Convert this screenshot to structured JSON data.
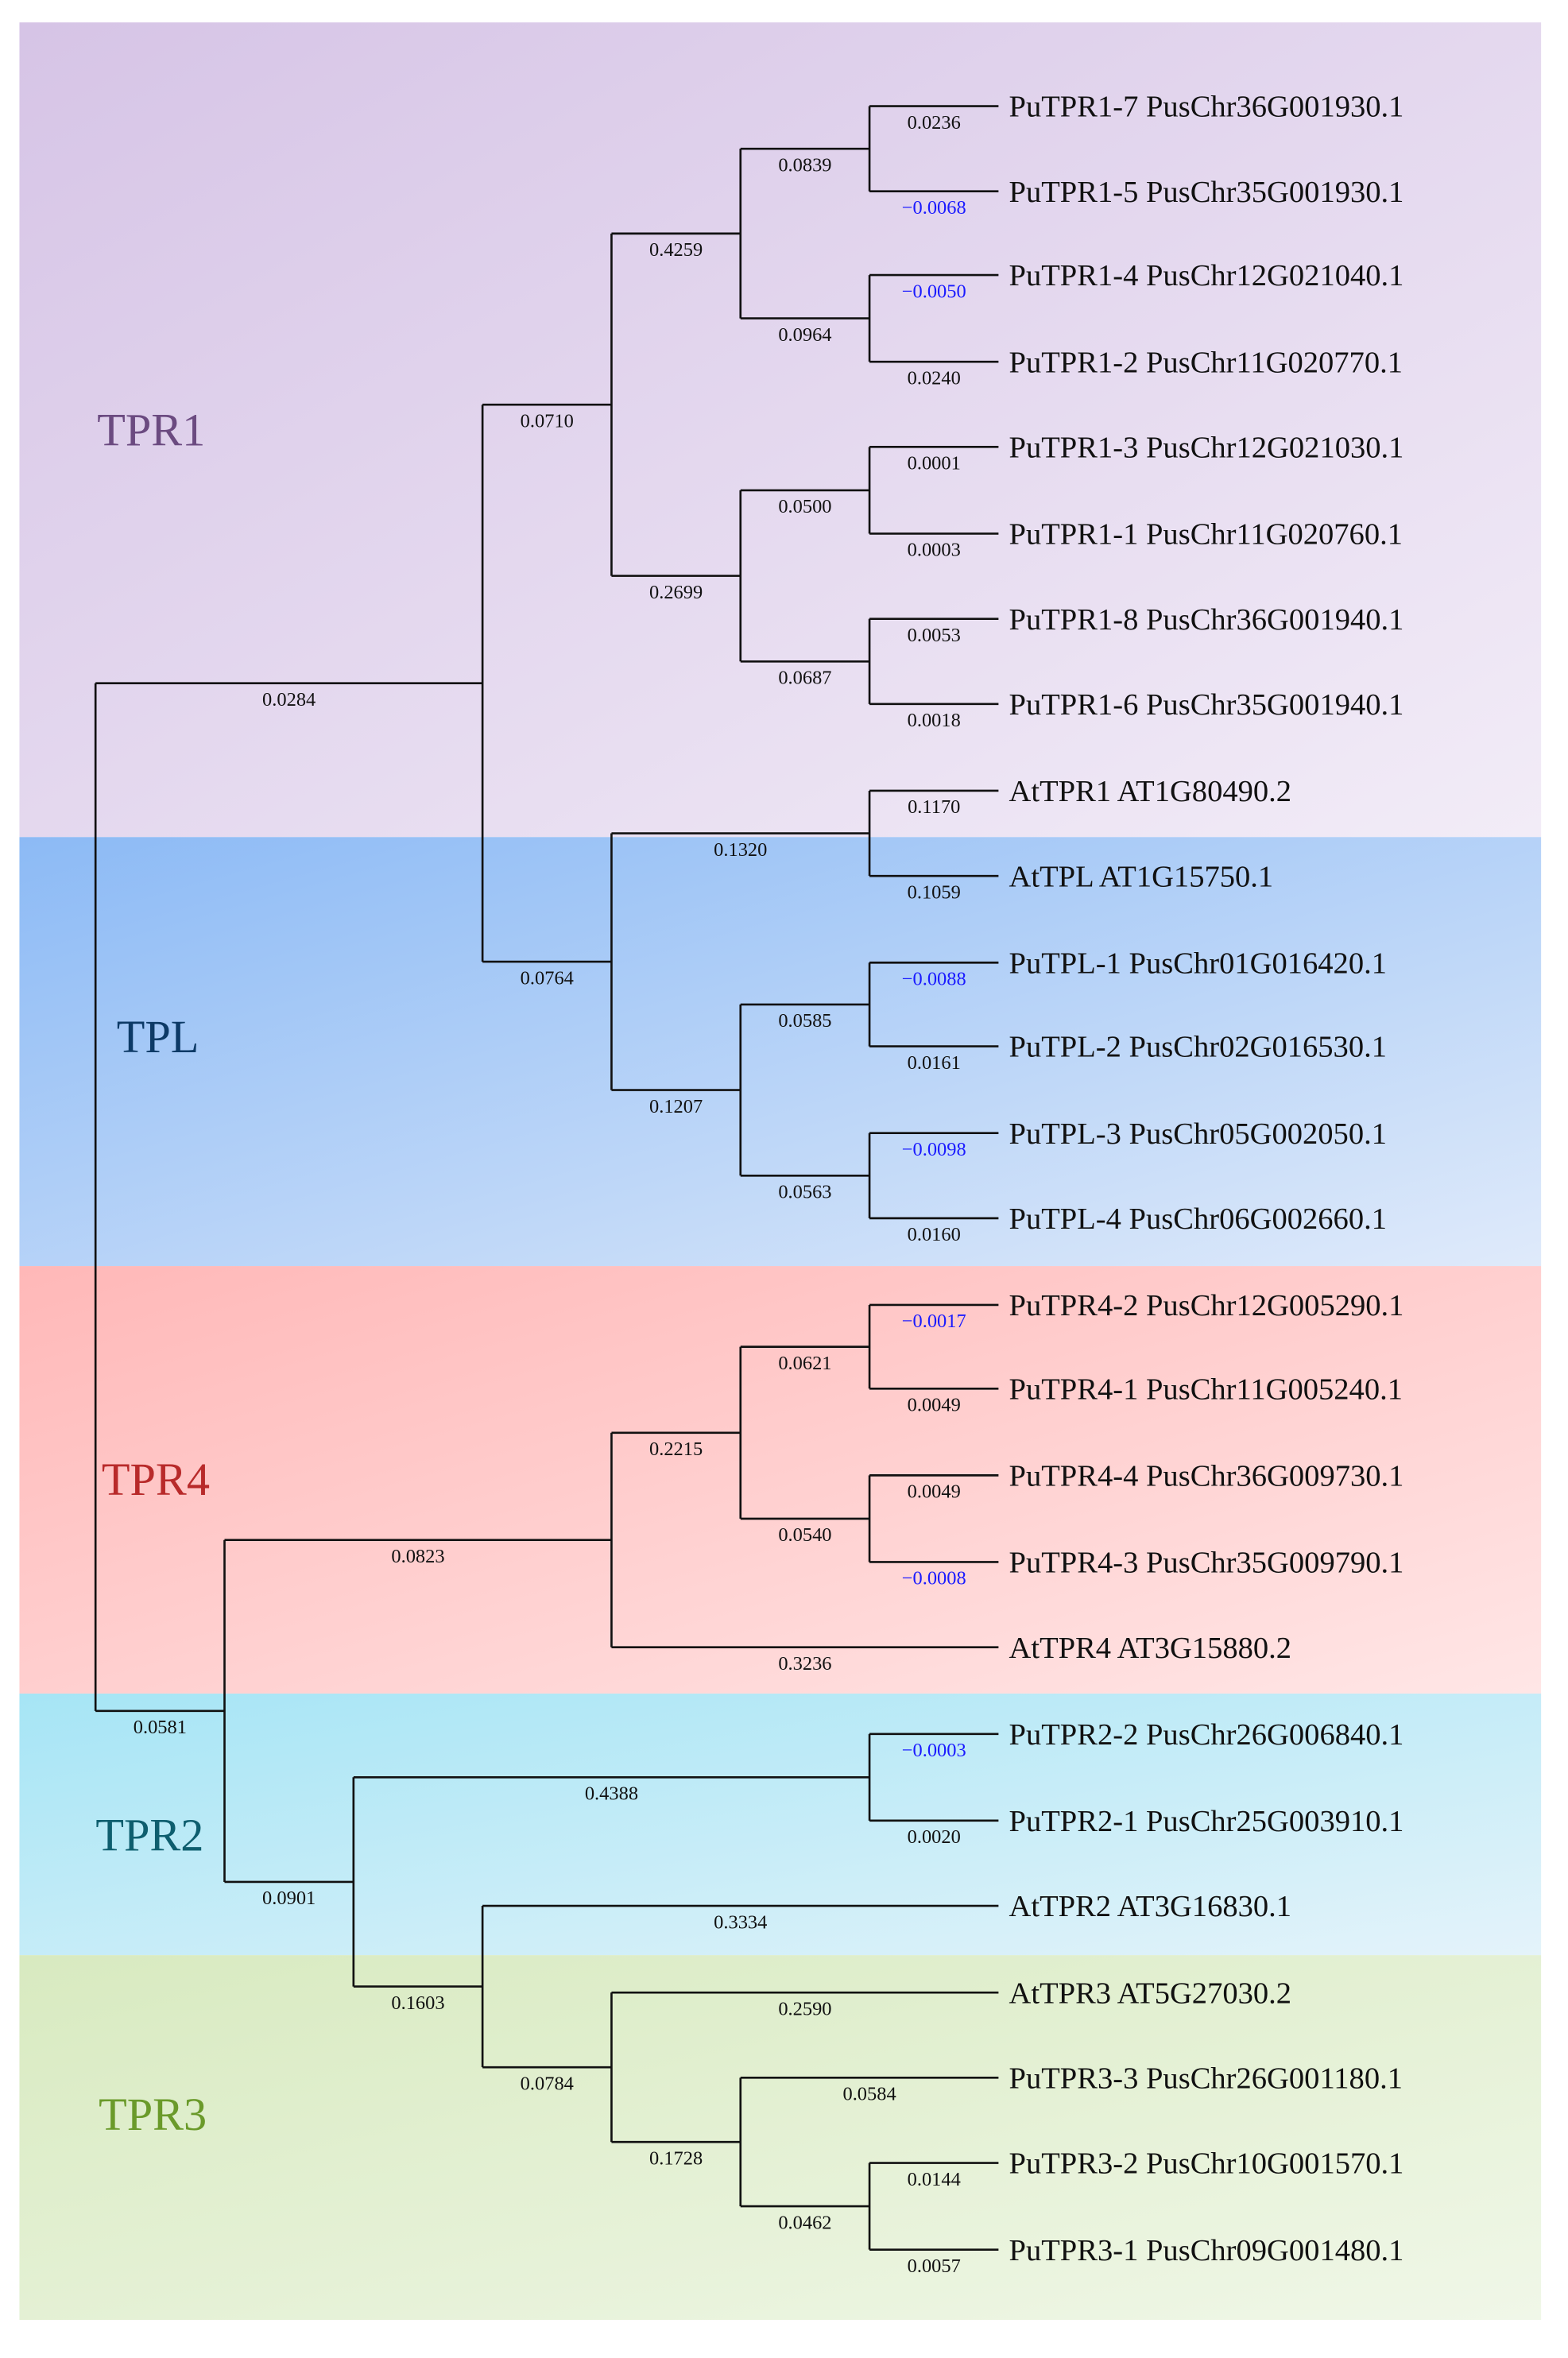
{
  "groups": [
    {
      "label": "TPR1",
      "color": "#6b4a80",
      "bg_from": "#d6c4e6",
      "bg_to": "#f2ecf7"
    },
    {
      "label": "TPL",
      "color": "#0d3a66",
      "bg_from": "#8cbaf5",
      "bg_to": "#dfeafa"
    },
    {
      "label": "TPR4",
      "color": "#b82a2a",
      "bg_from": "#ffb8b8",
      "bg_to": "#ffe6e6"
    },
    {
      "label": "TPR2",
      "color": "#0e5e6e",
      "bg_from": "#a6e5f5",
      "bg_to": "#e4f3fa"
    },
    {
      "label": "TPR3",
      "color": "#6a9a2a",
      "bg_from": "#d8eac0",
      "bg_to": "#f0f7e8"
    }
  ],
  "negative_color": "#1a1aff",
  "tree": {
    "children": [
      {
        "len": "0.0284",
        "children": [
          {
            "len": "0.0710",
            "children": [
              {
                "len": "0.4259",
                "children": [
                  {
                    "len": "0.0839",
                    "children": [
                      {
                        "name": "PuTPR1-7 PusChr36G001930.1",
                        "len": "0.0236"
                      },
                      {
                        "name": "PuTPR1-5 PusChr35G001930.1",
                        "len": "−0.0068"
                      }
                    ]
                  },
                  {
                    "len": "0.0964",
                    "children": [
                      {
                        "name": "PuTPR1-4 PusChr12G021040.1",
                        "len": "−0.0050"
                      },
                      {
                        "name": "PuTPR1-2 PusChr11G020770.1",
                        "len": "0.0240"
                      }
                    ]
                  }
                ]
              },
              {
                "len": "0.2699",
                "children": [
                  {
                    "len": "0.0500",
                    "children": [
                      {
                        "name": "PuTPR1-3 PusChr12G021030.1",
                        "len": "0.0001"
                      },
                      {
                        "name": "PuTPR1-1 PusChr11G020760.1",
                        "len": "0.0003"
                      }
                    ]
                  },
                  {
                    "len": "0.0687",
                    "children": [
                      {
                        "name": "PuTPR1-8 PusChr36G001940.1",
                        "len": "0.0053"
                      },
                      {
                        "name": "PuTPR1-6 PusChr35G001940.1",
                        "len": "0.0018"
                      }
                    ]
                  }
                ]
              }
            ]
          },
          {
            "len": "0.0764",
            "children": [
              {
                "len": "0.1320",
                "children": [
                  {
                    "name": "AtTPR1 AT1G80490.2",
                    "len": "0.1170"
                  },
                  {
                    "name": "AtTPL AT1G15750.1",
                    "len": "0.1059"
                  }
                ]
              },
              {
                "len": "0.1207",
                "children": [
                  {
                    "len": "0.0585",
                    "children": [
                      {
                        "name": "PuTPL-1 PusChr01G016420.1",
                        "len": "−0.0088"
                      },
                      {
                        "name": "PuTPL-2 PusChr02G016530.1",
                        "len": "0.0161"
                      }
                    ]
                  },
                  {
                    "len": "0.0563",
                    "children": [
                      {
                        "name": "PuTPL-3 PusChr05G002050.1",
                        "len": "−0.0098"
                      },
                      {
                        "name": "PuTPL-4 PusChr06G002660.1",
                        "len": "0.0160"
                      }
                    ]
                  }
                ]
              }
            ]
          }
        ]
      },
      {
        "len": "0.0581",
        "children": [
          {
            "len": "0.0823",
            "children": [
              {
                "len": "0.2215",
                "children": [
                  {
                    "len": "0.0621",
                    "children": [
                      {
                        "name": "PuTPR4-2 PusChr12G005290.1",
                        "len": "−0.0017"
                      },
                      {
                        "name": "PuTPR4-1 PusChr11G005240.1",
                        "len": "0.0049"
                      }
                    ]
                  },
                  {
                    "len": "0.0540",
                    "children": [
                      {
                        "name": "PuTPR4-4 PusChr36G009730.1",
                        "len": "0.0049"
                      },
                      {
                        "name": "PuTPR4-3 PusChr35G009790.1",
                        "len": "−0.0008"
                      }
                    ]
                  }
                ]
              },
              {
                "name": "AtTPR4 AT3G15880.2",
                "len": "0.3236"
              }
            ]
          },
          {
            "len": "0.0901",
            "children": [
              {
                "len": "0.4388",
                "children": [
                  {
                    "name": "PuTPR2-2 PusChr26G006840.1",
                    "len": "−0.0003"
                  },
                  {
                    "name": "PuTPR2-1 PusChr25G003910.1",
                    "len": "0.0020"
                  }
                ]
              },
              {
                "len": "0.1603",
                "children": [
                  {
                    "name": "AtTPR2 AT3G16830.1",
                    "len": "0.3334"
                  },
                  {
                    "len": "0.0784",
                    "children": [
                      {
                        "name": "AtTPR3 AT5G27030.2",
                        "len": "0.2590"
                      },
                      {
                        "len": "0.1728",
                        "children": [
                          {
                            "name": "PuTPR3-3 PusChr26G001180.1",
                            "len": "0.0584"
                          },
                          {
                            "len": "0.0462",
                            "children": [
                              {
                                "name": "PuTPR3-2 PusChr10G001570.1",
                                "len": "0.0144"
                              },
                              {
                                "name": "PuTPR3-1 PusChr09G001480.1",
                                "len": "0.0057"
                              }
                            ]
                          }
                        ]
                      }
                    ]
                  }
                ]
              }
            ]
          }
        ]
      }
    ]
  }
}
